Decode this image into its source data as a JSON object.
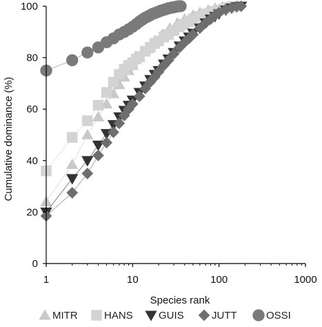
{
  "chart_data": {
    "type": "scatter",
    "xscale": "log",
    "xlim": [
      1,
      1000
    ],
    "ylim": [
      0,
      100
    ],
    "xlabel": "Species rank",
    "ylabel": "Cumulative dominance (%)",
    "xticks": [
      1,
      10,
      100,
      1000
    ],
    "xtick_labels": [
      "1",
      "10",
      "100",
      "1000"
    ],
    "yticks": [
      0,
      20,
      40,
      60,
      80,
      100
    ],
    "ytick_labels": [
      "0",
      "20",
      "40",
      "60",
      "80",
      "100"
    ],
    "grid": false,
    "legend_position": "bottom",
    "series": [
      {
        "name": "MITR",
        "marker": "triangle-up",
        "color": "#c9c9c9",
        "points": [
          [
            1,
            24
          ],
          [
            2,
            38.5
          ],
          [
            3,
            50
          ],
          [
            4,
            57
          ],
          [
            5,
            62
          ],
          [
            6,
            66
          ],
          [
            7,
            69.5
          ],
          [
            8,
            72.5
          ],
          [
            9,
            75
          ],
          [
            10,
            77
          ],
          [
            12,
            80
          ],
          [
            15,
            83.5
          ],
          [
            18,
            86.5
          ],
          [
            22,
            89
          ],
          [
            27,
            91.5
          ],
          [
            33,
            93.5
          ],
          [
            40,
            95
          ],
          [
            50,
            96.5
          ],
          [
            60,
            97.5
          ],
          [
            75,
            98.5
          ],
          [
            90,
            99.2
          ],
          [
            110,
            99.7
          ],
          [
            130,
            100
          ]
        ]
      },
      {
        "name": "HANS",
        "marker": "square",
        "color": "#d3d3d3",
        "points": [
          [
            1,
            36
          ],
          [
            2,
            49
          ],
          [
            3,
            55.5
          ],
          [
            4,
            61.5
          ],
          [
            5,
            66.5
          ],
          [
            6,
            70.5
          ],
          [
            7,
            73.5
          ],
          [
            8,
            75.5
          ],
          [
            9,
            77
          ],
          [
            10,
            78
          ],
          [
            11,
            79.5
          ],
          [
            12,
            80.5
          ],
          [
            14,
            82.5
          ],
          [
            16,
            84
          ],
          [
            18,
            85.5
          ],
          [
            20,
            86.5
          ],
          [
            23,
            88
          ],
          [
            26,
            89
          ],
          [
            30,
            90.5
          ],
          [
            35,
            92
          ],
          [
            40,
            93
          ],
          [
            45,
            94
          ],
          [
            50,
            95
          ],
          [
            60,
            96
          ],
          [
            70,
            97
          ],
          [
            80,
            97.5
          ],
          [
            90,
            98
          ],
          [
            100,
            98.5
          ],
          [
            115,
            99
          ],
          [
            130,
            99.5
          ],
          [
            150,
            99.8
          ]
        ]
      },
      {
        "name": "GUIS",
        "marker": "triangle-down",
        "color": "#333333",
        "points": [
          [
            1,
            20
          ],
          [
            2,
            33
          ],
          [
            3,
            40
          ],
          [
            4,
            46
          ],
          [
            5,
            50.5
          ],
          [
            6,
            54
          ],
          [
            7,
            57
          ],
          [
            8,
            59.5
          ],
          [
            9,
            61.5
          ],
          [
            10,
            63.5
          ],
          [
            12,
            66.5
          ],
          [
            14,
            69
          ],
          [
            16,
            71.5
          ],
          [
            18,
            73.5
          ],
          [
            20,
            75
          ],
          [
            23,
            77.5
          ],
          [
            26,
            79.5
          ],
          [
            30,
            82
          ],
          [
            35,
            84.5
          ],
          [
            40,
            86.5
          ],
          [
            45,
            88
          ],
          [
            50,
            89.5
          ],
          [
            60,
            91.5
          ],
          [
            70,
            93.5
          ],
          [
            80,
            95
          ],
          [
            90,
            96
          ],
          [
            100,
            97
          ],
          [
            120,
            98.5
          ],
          [
            140,
            99.3
          ],
          [
            160,
            99.8
          ],
          [
            180,
            100
          ]
        ]
      },
      {
        "name": "JUTT",
        "marker": "diamond",
        "color": "#6e6e6e",
        "points": [
          [
            1,
            18.5
          ],
          [
            2,
            27.5
          ],
          [
            3,
            35
          ],
          [
            4,
            42
          ],
          [
            5,
            47
          ],
          [
            6,
            51
          ],
          [
            7,
            54.5
          ],
          [
            8,
            57.5
          ],
          [
            9,
            60
          ],
          [
            10,
            62
          ],
          [
            12,
            65
          ],
          [
            14,
            68
          ],
          [
            16,
            70.5
          ],
          [
            18,
            72.5
          ],
          [
            20,
            74.5
          ],
          [
            23,
            77
          ],
          [
            26,
            79
          ],
          [
            30,
            81.5
          ],
          [
            35,
            84
          ],
          [
            40,
            86
          ],
          [
            45,
            87.5
          ],
          [
            50,
            89
          ],
          [
            60,
            91.5
          ],
          [
            70,
            93.5
          ],
          [
            80,
            95
          ],
          [
            90,
            96.5
          ],
          [
            100,
            97.5
          ],
          [
            120,
            98.8
          ],
          [
            140,
            99.5
          ],
          [
            160,
            99.9
          ],
          [
            180,
            100
          ]
        ]
      },
      {
        "name": "OSSI",
        "marker": "circle",
        "color": "#7a7a7a",
        "points": [
          [
            1,
            75
          ],
          [
            2,
            79
          ],
          [
            3,
            82
          ],
          [
            4,
            84
          ],
          [
            5,
            86
          ],
          [
            6,
            87.5
          ],
          [
            7,
            89
          ],
          [
            8,
            90
          ],
          [
            9,
            91
          ],
          [
            10,
            92
          ],
          [
            11,
            93
          ],
          [
            12,
            94
          ],
          [
            13,
            94.8
          ],
          [
            14,
            95.5
          ],
          [
            15,
            96
          ],
          [
            16,
            96.5
          ],
          [
            17,
            97
          ],
          [
            18,
            97.3
          ],
          [
            19,
            97.6
          ],
          [
            20,
            97.9
          ],
          [
            21,
            98.2
          ],
          [
            22,
            98.4
          ],
          [
            23,
            98.6
          ],
          [
            24,
            98.8
          ],
          [
            25,
            99
          ],
          [
            26,
            99.2
          ],
          [
            27,
            99.3
          ],
          [
            28,
            99.4
          ],
          [
            29,
            99.5
          ],
          [
            30,
            99.6
          ],
          [
            31,
            99.7
          ],
          [
            32,
            99.8
          ],
          [
            33,
            99.9
          ],
          [
            34,
            100
          ],
          [
            35,
            100
          ],
          [
            36,
            100
          ]
        ]
      }
    ]
  }
}
